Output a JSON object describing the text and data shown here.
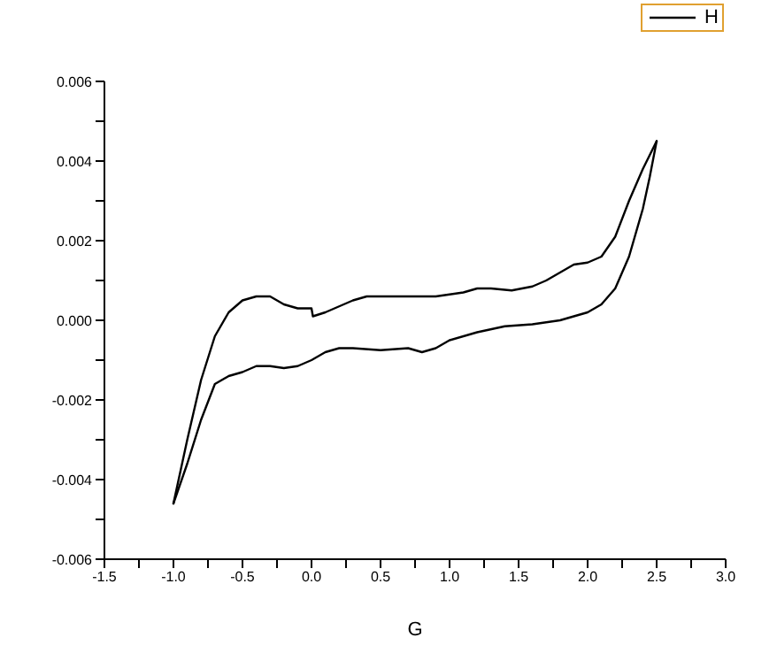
{
  "chart_data": {
    "type": "line",
    "xlabel": "G",
    "legend": "top right",
    "marker": "none",
    "line_style": "solid",
    "grid": false,
    "xlim": [
      -1.5,
      3.0
    ],
    "xticks": [
      {
        "value": -1.5,
        "label": "-1.5"
      },
      {
        "value": -1.25,
        "label": null
      },
      {
        "value": -1,
        "label": "-1.0"
      },
      {
        "value": -0.75,
        "label": null
      },
      {
        "value": -0.5,
        "label": "-0.5"
      },
      {
        "value": -0.25,
        "label": null
      },
      {
        "value": 0,
        "label": "0.0"
      },
      {
        "value": 0.25,
        "label": null
      },
      {
        "value": 0.5,
        "label": "0.5"
      },
      {
        "value": 0.75,
        "label": null
      },
      {
        "value": 1,
        "label": "1.0"
      },
      {
        "value": 1.25,
        "label": null
      },
      {
        "value": 1.5,
        "label": "1.5"
      },
      {
        "value": 1.75,
        "label": null
      },
      {
        "value": 2,
        "label": "2.0"
      },
      {
        "value": 2.25,
        "label": null
      },
      {
        "value": 2.5,
        "label": "2.5"
      },
      {
        "value": 2.75,
        "label": null
      },
      {
        "value": 3,
        "label": "3.0"
      }
    ],
    "ylim": [
      -0.006,
      0.006
    ],
    "yticks": [
      {
        "value": -0.006,
        "label": "-0.006"
      },
      {
        "value": -0.005,
        "label": null
      },
      {
        "value": -0.004,
        "label": "-0.004"
      },
      {
        "value": -0.003,
        "label": null
      },
      {
        "value": -0.002,
        "label": "-0.002"
      },
      {
        "value": -0.001,
        "label": null
      },
      {
        "value": 0,
        "label": "0.000"
      },
      {
        "value": 0.001,
        "label": null
      },
      {
        "value": 0.002,
        "label": "0.002"
      },
      {
        "value": 0.003,
        "label": null
      },
      {
        "value": 0.004,
        "label": "0.004"
      },
      {
        "value": 0.005,
        "label": null
      },
      {
        "value": 0.006,
        "label": "0.006"
      }
    ],
    "series": [
      {
        "name": "H",
        "color": "#000000",
        "x": [
          -1.0,
          -0.9,
          -0.8,
          -0.7,
          -0.6,
          -0.5,
          -0.4,
          -0.3,
          -0.2,
          -0.1,
          0.0,
          0.01,
          0.1,
          0.2,
          0.3,
          0.4,
          0.5,
          0.7,
          0.9,
          1.0,
          1.1,
          1.2,
          1.3,
          1.45,
          1.6,
          1.7,
          1.8,
          1.9,
          2.0,
          2.1,
          2.2,
          2.3,
          2.4,
          2.5
        ],
        "values": [
          -0.0046,
          -0.003,
          -0.0015,
          -0.0004,
          0.0002,
          0.0005,
          0.0006,
          0.0006,
          0.0004,
          0.0003,
          0.0003,
          0.0001,
          0.0002,
          0.00035,
          0.0005,
          0.0006,
          0.0006,
          0.0006,
          0.0006,
          0.00065,
          0.0007,
          0.0008,
          0.0008,
          0.00075,
          0.00085,
          0.001,
          0.0012,
          0.0014,
          0.00145,
          0.0016,
          0.0021,
          0.003,
          0.0038,
          0.0045
        ]
      },
      {
        "color": "#000000",
        "x": [
          -1.0,
          -0.9,
          -0.8,
          -0.7,
          -0.6,
          -0.5,
          -0.4,
          -0.3,
          -0.2,
          -0.1,
          0.0,
          0.1,
          0.2,
          0.3,
          0.5,
          0.7,
          0.8,
          0.9,
          1.0,
          1.2,
          1.4,
          1.6,
          1.8,
          1.9,
          2.0,
          2.1,
          2.2,
          2.3,
          2.4,
          2.45,
          2.5
        ],
        "values": [
          -0.0046,
          -0.0036,
          -0.0025,
          -0.0016,
          -0.0014,
          -0.0013,
          -0.00115,
          -0.00115,
          -0.0012,
          -0.00115,
          -0.001,
          -0.0008,
          -0.0007,
          -0.0007,
          -0.00075,
          -0.0007,
          -0.0008,
          -0.0007,
          -0.0005,
          -0.0003,
          -0.00015,
          -0.0001,
          0.0,
          0.0001,
          0.0002,
          0.0004,
          0.0008,
          0.0016,
          0.0028,
          0.0036,
          0.0045
        ]
      }
    ]
  }
}
